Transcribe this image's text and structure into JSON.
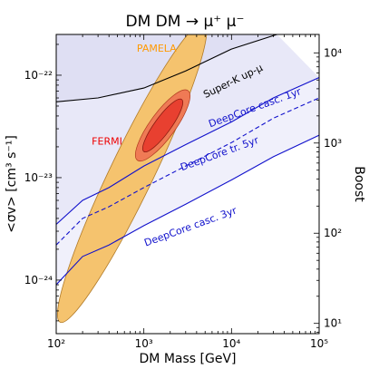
{
  "chart_data": {
    "type": "area",
    "title": "DM DM → μ⁺ μ⁻",
    "xlabel": "DM Mass [GeV]",
    "ylabel": "<σv> [cm³ s⁻¹]",
    "y2label": "Boost",
    "xscale": "log",
    "yscale": "log",
    "xlim": [
      100,
      100000
    ],
    "ylim": [
      3e-25,
      2.5e-22
    ],
    "y2lim": [
      7.7,
      16000
    ],
    "x_ticks": [
      {
        "value": 100,
        "label": "10²"
      },
      {
        "value": 1000,
        "label": "10³"
      },
      {
        "value": 10000,
        "label": "10⁴"
      },
      {
        "value": 100000,
        "label": "10⁵"
      }
    ],
    "y_ticks": [
      {
        "value": 1e-24,
        "label": "10⁻²⁴"
      },
      {
        "value": 1e-23,
        "label": "10⁻²³"
      },
      {
        "value": 1e-22,
        "label": "10⁻²²"
      }
    ],
    "y2_ticks": [
      {
        "value": 10,
        "label": "10¹"
      },
      {
        "value": 100,
        "label": "10²"
      },
      {
        "value": 1000,
        "label": "10³"
      },
      {
        "value": 10000,
        "label": "10⁴"
      }
    ],
    "regions": [
      {
        "name": "PAMELA",
        "label_color": "#ff9900",
        "fill": "#f5c36e",
        "edge": "#b07a28",
        "label_at": {
          "x": 1400,
          "y": 1.7e-22
        }
      },
      {
        "name": "FERMI",
        "label_color": "#ee0000",
        "fill": "#ef7a55",
        "edge": "#b03a1e",
        "inner_fill": "#e84030",
        "label_at": {
          "x": 380,
          "y": 2.1e-23
        }
      }
    ],
    "series": [
      {
        "name": "Super-K up-μ",
        "style": "solid",
        "color": "#000000",
        "x": [
          100,
          300,
          1000,
          3000,
          10000,
          33000
        ],
        "y": [
          5.5e-23,
          6e-23,
          7.5e-23,
          1.1e-22,
          1.8e-22,
          2.5e-22
        ],
        "label_at": {
          "x": 10800,
          "y": 8.2e-23
        }
      },
      {
        "name": "DeepCore casc. 1yr",
        "style": "solid",
        "color": "#1111cc",
        "x": [
          100,
          200,
          400,
          1000,
          3000,
          10000,
          30000,
          100000
        ],
        "y": [
          3.5e-24,
          6e-24,
          8e-24,
          1.3e-23,
          2.1e-23,
          3.5e-23,
          6e-23,
          9.5e-23
        ],
        "label_at": {
          "x": 19000,
          "y": 4.5e-23
        }
      },
      {
        "name": "DeepCore tr. 5yr",
        "style": "dashed",
        "color": "#1111cc",
        "x": [
          100,
          200,
          400,
          1000,
          3000,
          10000,
          30000,
          100000
        ],
        "y": [
          2.2e-24,
          4e-24,
          5.2e-24,
          8e-24,
          1.3e-23,
          2.2e-23,
          3.8e-23,
          6e-23
        ],
        "label_at": {
          "x": 7500,
          "y": 1.6e-23
        }
      },
      {
        "name": "DeepCore casc. 3yr",
        "style": "solid",
        "color": "#1111cc",
        "x": [
          100,
          200,
          400,
          1000,
          3000,
          10000,
          30000,
          100000
        ],
        "y": [
          9e-25,
          1.7e-24,
          2.2e-24,
          3.4e-24,
          5.5e-24,
          9.5e-24,
          1.6e-23,
          2.6e-23
        ],
        "label_at": {
          "x": 3500,
          "y": 3.1e-24
        }
      }
    ],
    "grid": false
  }
}
